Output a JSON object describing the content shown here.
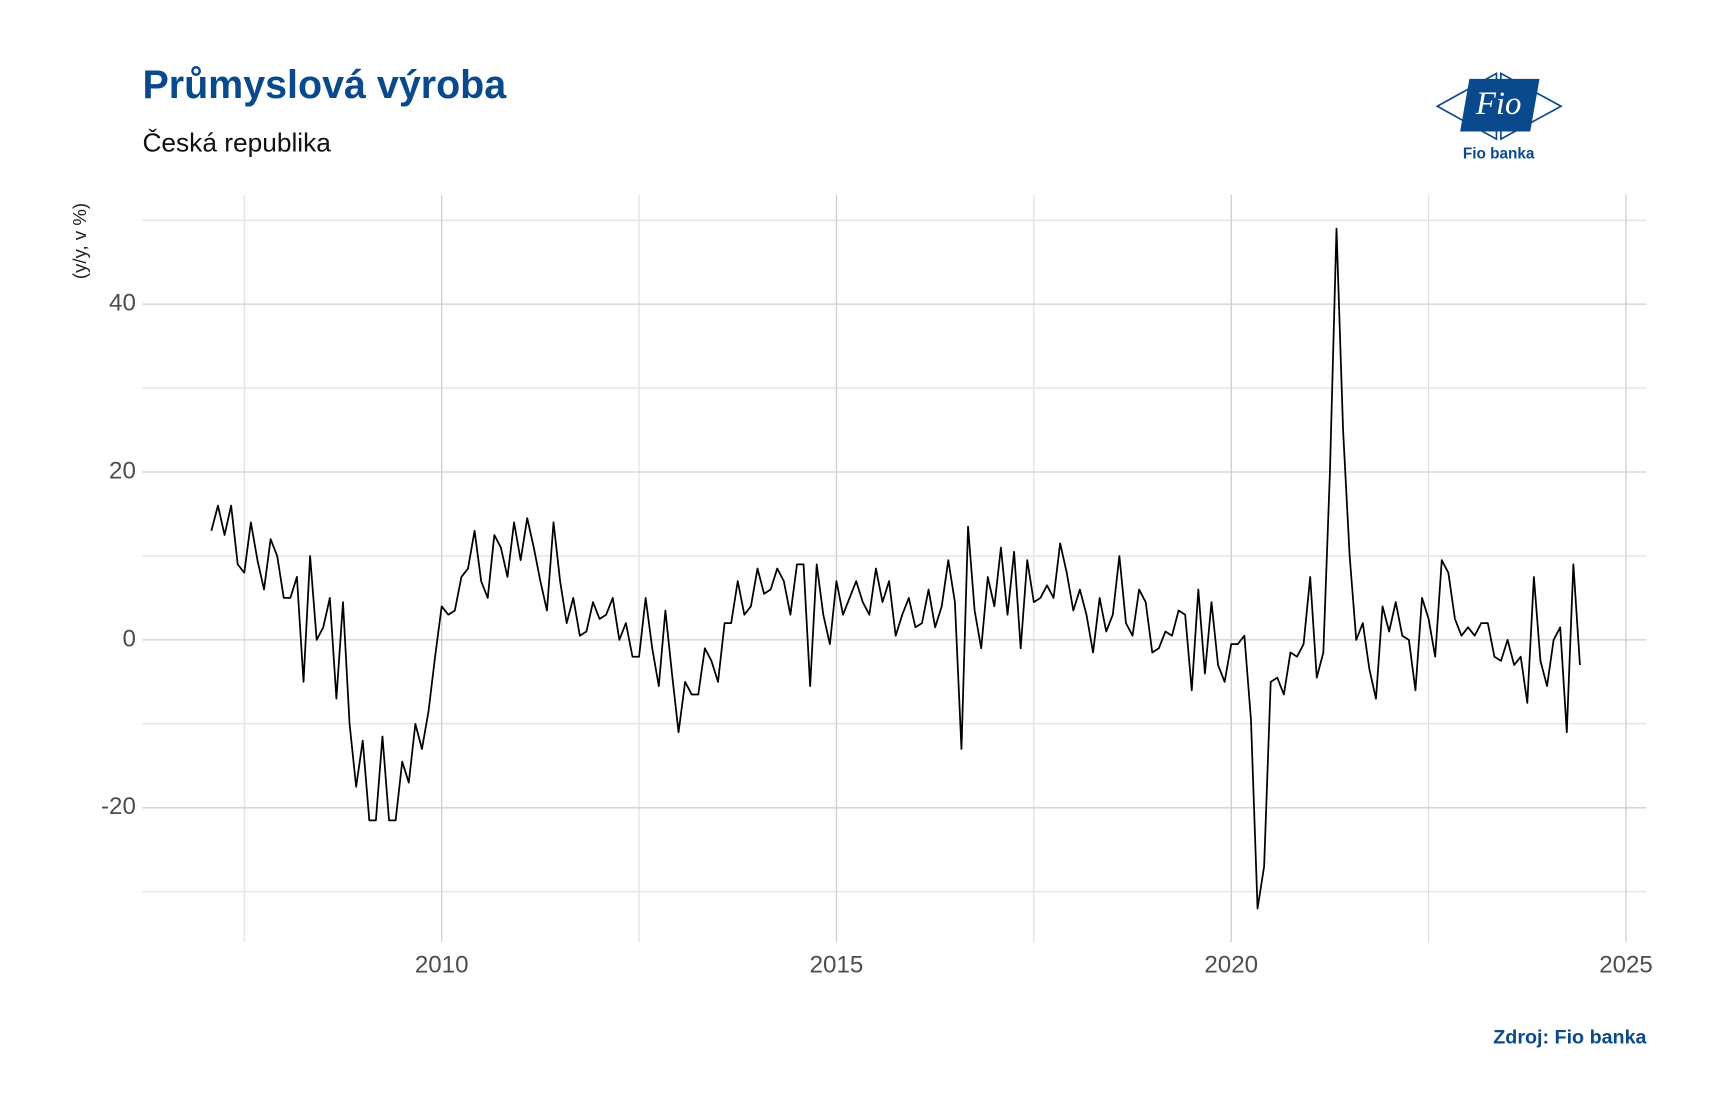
{
  "chart_data": {
    "type": "line",
    "title": "Průmyslová výroba",
    "subtitle": "Česká republika",
    "ylabel": "(y/y, v %)",
    "source": "Zdroj: Fio banka",
    "xlim": [
      2006.21,
      2025.26
    ],
    "ylim": [
      -36,
      53
    ],
    "xticks": [
      2010,
      2015,
      2020,
      2025
    ],
    "yticks": [
      -20,
      0,
      20,
      40
    ],
    "x_minor_grid": [
      2007.5,
      2012.5,
      2017.5,
      2022.5
    ],
    "y_minor_grid": [
      -30,
      -10,
      10,
      30,
      50
    ],
    "grid": true,
    "x": [
      "2007-01",
      "2007-02",
      "2007-03",
      "2007-04",
      "2007-05",
      "2007-06",
      "2007-07",
      "2007-08",
      "2007-09",
      "2007-10",
      "2007-11",
      "2007-12",
      "2008-01",
      "2008-02",
      "2008-03",
      "2008-04",
      "2008-05",
      "2008-06",
      "2008-07",
      "2008-08",
      "2008-09",
      "2008-10",
      "2008-11",
      "2008-12",
      "2009-01",
      "2009-02",
      "2009-03",
      "2009-04",
      "2009-05",
      "2009-06",
      "2009-07",
      "2009-08",
      "2009-09",
      "2009-10",
      "2009-11",
      "2009-12",
      "2010-01",
      "2010-02",
      "2010-03",
      "2010-04",
      "2010-05",
      "2010-06",
      "2010-07",
      "2010-08",
      "2010-09",
      "2010-10",
      "2010-11",
      "2010-12",
      "2011-01",
      "2011-02",
      "2011-03",
      "2011-04",
      "2011-05",
      "2011-06",
      "2011-07",
      "2011-08",
      "2011-09",
      "2011-10",
      "2011-11",
      "2011-12",
      "2012-01",
      "2012-02",
      "2012-03",
      "2012-04",
      "2012-05",
      "2012-06",
      "2012-07",
      "2012-08",
      "2012-09",
      "2012-10",
      "2012-11",
      "2012-12",
      "2013-01",
      "2013-02",
      "2013-03",
      "2013-04",
      "2013-05",
      "2013-06",
      "2013-07",
      "2013-08",
      "2013-09",
      "2013-10",
      "2013-11",
      "2013-12",
      "2014-01",
      "2014-02",
      "2014-03",
      "2014-04",
      "2014-05",
      "2014-06",
      "2014-07",
      "2014-08",
      "2014-09",
      "2014-10",
      "2014-11",
      "2014-12",
      "2015-01",
      "2015-02",
      "2015-03",
      "2015-04",
      "2015-05",
      "2015-06",
      "2015-07",
      "2015-08",
      "2015-09",
      "2015-10",
      "2015-11",
      "2015-12",
      "2016-01",
      "2016-02",
      "2016-03",
      "2016-04",
      "2016-05",
      "2016-06",
      "2016-07",
      "2016-08",
      "2016-09",
      "2016-10",
      "2016-11",
      "2016-12",
      "2017-01",
      "2017-02",
      "2017-03",
      "2017-04",
      "2017-05",
      "2017-06",
      "2017-07",
      "2017-08",
      "2017-09",
      "2017-10",
      "2017-11",
      "2017-12",
      "2018-01",
      "2018-02",
      "2018-03",
      "2018-04",
      "2018-05",
      "2018-06",
      "2018-07",
      "2018-08",
      "2018-09",
      "2018-10",
      "2018-11",
      "2018-12",
      "2019-01",
      "2019-02",
      "2019-03",
      "2019-04",
      "2019-05",
      "2019-06",
      "2019-07",
      "2019-08",
      "2019-09",
      "2019-10",
      "2019-11",
      "2019-12",
      "2020-01",
      "2020-02",
      "2020-03",
      "2020-04",
      "2020-05",
      "2020-06",
      "2020-07",
      "2020-08",
      "2020-09",
      "2020-10",
      "2020-11",
      "2020-12",
      "2021-01",
      "2021-02",
      "2021-03",
      "2021-04",
      "2021-05",
      "2021-06",
      "2021-07",
      "2021-08",
      "2021-09",
      "2021-10",
      "2021-11",
      "2021-12",
      "2022-01",
      "2022-02",
      "2022-03",
      "2022-04",
      "2022-05",
      "2022-06",
      "2022-07",
      "2022-08",
      "2022-09",
      "2022-10",
      "2022-11",
      "2022-12",
      "2023-01",
      "2023-02",
      "2023-03",
      "2023-04",
      "2023-05",
      "2023-06",
      "2023-07",
      "2023-08",
      "2023-09",
      "2023-10",
      "2023-11",
      "2023-12",
      "2024-01",
      "2024-02",
      "2024-03",
      "2024-04",
      "2024-05"
    ],
    "series": [
      {
        "color": "#000000",
        "values": [
          13,
          16,
          12.5,
          16,
          9,
          8,
          14,
          9.5,
          6,
          12,
          10,
          5,
          5,
          7.5,
          -5,
          10,
          0,
          1.5,
          5,
          -7,
          4.5,
          -10,
          -17.5,
          -12,
          -21.5,
          -21.5,
          -11.5,
          -21.5,
          -21.5,
          -14.5,
          -17,
          -10,
          -13,
          -8.5,
          -2,
          4,
          3,
          3.5,
          7.5,
          8.5,
          13,
          7,
          5,
          12.5,
          11,
          7.5,
          14,
          9.5,
          14.5,
          11,
          7,
          3.5,
          14,
          7,
          2,
          5,
          0.5,
          1,
          4.5,
          2.5,
          3,
          5,
          0,
          2,
          -2,
          -2,
          5,
          -1,
          -5.5,
          3.5,
          -4,
          -11,
          -5,
          -6.5,
          -6.5,
          -1,
          -2.5,
          -5,
          2,
          2,
          7,
          3,
          4,
          8.5,
          5.5,
          6,
          8.5,
          7,
          3,
          9,
          9,
          -5.5,
          9,
          3,
          -0.5,
          7,
          3,
          5,
          7,
          4.5,
          3,
          8.5,
          4.5,
          7,
          0.5,
          3,
          5,
          1.5,
          2,
          6,
          1.5,
          4,
          9.5,
          4.5,
          -13,
          13.5,
          3.5,
          -1,
          7.5,
          4,
          11,
          3,
          10.5,
          -1,
          9.5,
          4.5,
          5,
          6.5,
          5,
          11.5,
          8,
          3.5,
          6,
          3,
          -1.5,
          5,
          1,
          3,
          10,
          2,
          0.5,
          6,
          4.5,
          -1.5,
          -1,
          1,
          0.5,
          3.5,
          3,
          -6,
          6,
          -4,
          4.5,
          -3,
          -5,
          -0.5,
          -0.5,
          0.5,
          -9.5,
          -32,
          -27,
          -5,
          -4.5,
          -6.5,
          -1.5,
          -2,
          -0.5,
          7.5,
          -4.5,
          -1.5,
          20,
          49,
          25,
          10,
          0,
          2,
          -3.5,
          -7,
          4,
          1,
          4.5,
          0.5,
          0,
          -6,
          5,
          2.5,
          -2,
          9.5,
          8,
          2.5,
          0.5,
          1.5,
          0.5,
          2,
          2,
          -2,
          -2.5,
          0,
          -3,
          -2,
          -7.5,
          7.5,
          -2.5,
          -5.5,
          0,
          1.5,
          -11,
          9,
          -3
        ]
      }
    ]
  },
  "logo": {
    "mark": "Fio",
    "name": "Fio banka"
  }
}
